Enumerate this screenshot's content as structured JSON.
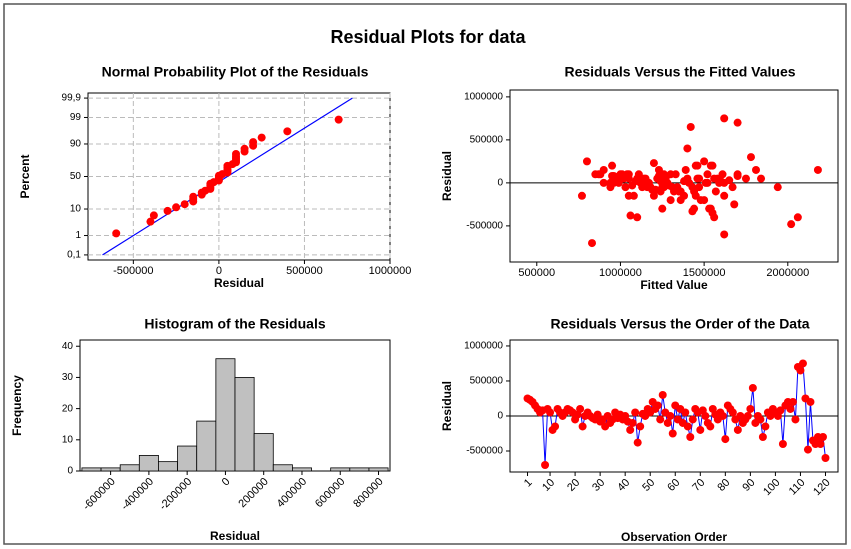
{
  "title": "Residual Plots for data",
  "chart_data": [
    {
      "type": "probability",
      "title": "Normal Probability Plot of the Residuals",
      "x_label": "Residual",
      "y_label": "Percent",
      "yscale": "probability",
      "grid": true,
      "color": "#ff0000",
      "x": [
        -600000,
        -400000,
        -380000,
        -300000,
        -250000,
        -200000,
        -150000,
        -150000,
        -150000,
        -100000,
        -100000,
        -80000,
        -50000,
        -50000,
        -50000,
        -50000,
        -30000,
        0,
        0,
        0,
        0,
        20000,
        50000,
        50000,
        50000,
        50000,
        50000,
        80000,
        100000,
        100000,
        100000,
        100000,
        100000,
        150000,
        150000,
        200000,
        200000,
        250000,
        400000,
        700000
      ],
      "y": [
        1.25,
        3.75,
        6.25,
        8.75,
        11.25,
        13.75,
        16.25,
        18.75,
        21.25,
        23.75,
        26.25,
        28.75,
        31.25,
        33.75,
        36.25,
        38.75,
        41.25,
        43.75,
        46.25,
        48.75,
        51.25,
        53.75,
        56.25,
        58.75,
        61.25,
        63.75,
        66.25,
        68.75,
        71.25,
        73.75,
        76.25,
        78.75,
        81.25,
        83.75,
        86.25,
        88.75,
        91.25,
        93.75,
        96.25,
        98.75
      ],
      "fit_line": {
        "x": [
          -680000,
          780000
        ],
        "y": [
          0.1,
          99.9
        ],
        "color": "#0000ff"
      },
      "xlim": [
        -765000,
        1000000
      ],
      "ylim": [
        0.05,
        99.95
      ],
      "xticks": [
        -500000,
        0,
        500000,
        1000000
      ],
      "yticks": [
        {
          "value": 0.1,
          "label": "0,1"
        },
        1,
        10,
        50,
        90,
        99,
        {
          "value": 99.9,
          "label": "99,9"
        }
      ]
    },
    {
      "type": "scatter",
      "title": "Residuals Versus the Fitted Values",
      "x_label": "Fitted Value",
      "y_label": "Residual",
      "color": "#ff0000",
      "reference_line": 0,
      "x": [
        1500000,
        1200000,
        1450000,
        900000,
        1050000,
        1100000,
        950000,
        830000,
        1300000,
        1000000,
        1360000,
        1080000,
        850000,
        1150000,
        1250000,
        1400000,
        1330000,
        960000,
        1020000,
        1180000,
        1240000,
        1520000,
        770000,
        1120000,
        1050000,
        990000,
        1290000,
        1160000,
        1380000,
        1210000,
        1470000,
        1050000,
        900000,
        1350000,
        1260000,
        1560000,
        1070000,
        1600000,
        1430000,
        940000,
        1190000,
        1300000,
        1240000,
        1470000,
        1060000,
        1380000,
        1650000,
        1520000,
        1110000,
        1460000,
        1550000,
        1260000,
        1390000,
        1340000,
        1780000,
        980000,
        1570000,
        1410000,
        1680000,
        1230000,
        1130000,
        1040000,
        1440000,
        1580000,
        1200000,
        1530000,
        1310000,
        880000,
        1270000,
        1500000,
        1700000,
        1170000,
        1360000,
        1450000,
        1000000,
        1090000,
        1250000,
        1750000,
        1620000,
        1430000,
        1810000,
        1610000,
        1140000,
        940000,
        1480000,
        1510000,
        1320000,
        1940000,
        1280000,
        870000,
        1400000,
        1350000,
        1590000,
        1030000,
        1540000,
        1620000,
        1840000,
        960000,
        1010000,
        1220000,
        1150000,
        1230000,
        1100000,
        2180000,
        1460000,
        1700000,
        1540000,
        1670000,
        1700000,
        1420000,
        1620000,
        800000,
        2020000,
        950000,
        1550000,
        2060000,
        1250000,
        1560000,
        1440000,
        1620000
      ],
      "y": [
        250000,
        230000,
        200000,
        150000,
        100000,
        50000,
        80000,
        -700000,
        100000,
        50000,
        -200000,
        -150000,
        100000,
        50000,
        0,
        50000,
        100000,
        80000,
        50000,
        -50000,
        20000,
        100000,
        -150000,
        0,
        50000,
        0,
        -30000,
        -50000,
        20000,
        -80000,
        -50000,
        -150000,
        0,
        -100000,
        -50000,
        50000,
        -30000,
        20000,
        -50000,
        0,
        -80000,
        -200000,
        -100000,
        50000,
        -380000,
        -150000,
        30000,
        0,
        100000,
        50000,
        200000,
        100000,
        150000,
        -50000,
        300000,
        50000,
        -100000,
        0,
        -250000,
        150000,
        -50000,
        100000,
        -100000,
        50000,
        -150000,
        -300000,
        -50000,
        100000,
        50000,
        -200000,
        80000,
        0,
        -100000,
        -150000,
        100000,
        20000,
        -50000,
        50000,
        0,
        -330000,
        150000,
        100000,
        50000,
        -50000,
        -200000,
        0,
        -100000,
        -50000,
        0,
        100000,
        400000,
        -100000,
        0,
        -50000,
        -300000,
        -150000,
        50000,
        0,
        100000,
        50000,
        0,
        80000,
        -400000,
        150000,
        200000,
        100000,
        200000,
        -50000,
        700000,
        650000,
        750000,
        250000,
        -480000,
        200000,
        -350000,
        -400000,
        -300000,
        -400000,
        -300000,
        -600000
      ],
      "xlim": [
        340000,
        2300000
      ],
      "ylim": [
        -920000,
        1080000
      ],
      "xticks": [
        500000,
        1000000,
        1500000,
        2000000
      ],
      "yticks": [
        1000000,
        500000,
        0,
        -500000
      ]
    },
    {
      "type": "histogram",
      "title": "Histogram of the Residuals",
      "x_label": "Residual",
      "y_label": "Frequency",
      "color": "#c0c0c0",
      "xtick_rotation": 45,
      "bins": [
        -750000,
        -650000,
        -550000,
        -450000,
        -350000,
        -250000,
        -150000,
        -50000,
        50000,
        150000,
        250000,
        350000,
        450000,
        550000,
        650000,
        750000,
        850000
      ],
      "values": [
        1,
        1,
        2,
        5,
        3,
        8,
        16,
        36,
        30,
        12,
        2,
        1,
        0,
        1,
        1,
        1
      ],
      "xlim": [
        -760000,
        860000
      ],
      "ylim": [
        0,
        42
      ],
      "xticks": [
        -600000,
        -400000,
        -200000,
        0,
        200000,
        400000,
        600000,
        800000
      ],
      "yticks": [
        0,
        10,
        20,
        30,
        40
      ]
    },
    {
      "type": "line",
      "title": "Residuals Versus the Order of the Data",
      "x_label": "Observation Order",
      "y_label": "Residual",
      "color": "#ff0000",
      "line_color": "#0000ff",
      "reference_line": 0,
      "xtick_rotation": 45,
      "x": [
        1,
        2,
        3,
        4,
        5,
        6,
        7,
        8,
        9,
        10,
        11,
        12,
        13,
        14,
        15,
        16,
        17,
        18,
        19,
        20,
        21,
        22,
        23,
        24,
        25,
        26,
        27,
        28,
        29,
        30,
        31,
        32,
        33,
        34,
        35,
        36,
        37,
        38,
        39,
        40,
        41,
        42,
        43,
        44,
        45,
        46,
        47,
        48,
        49,
        50,
        51,
        52,
        53,
        54,
        55,
        56,
        57,
        58,
        59,
        60,
        61,
        62,
        63,
        64,
        65,
        66,
        67,
        68,
        69,
        70,
        71,
        72,
        73,
        74,
        75,
        76,
        77,
        78,
        79,
        80,
        81,
        82,
        83,
        84,
        85,
        86,
        87,
        88,
        89,
        90,
        91,
        92,
        93,
        94,
        95,
        96,
        97,
        98,
        99,
        100,
        101,
        102,
        103,
        104,
        105,
        106,
        107,
        108,
        109,
        110,
        111,
        112,
        113,
        114,
        115,
        116,
        117,
        118,
        119,
        120
      ],
      "values": [
        250000,
        230000,
        200000,
        150000,
        100000,
        50000,
        80000,
        -700000,
        100000,
        50000,
        -200000,
        -150000,
        100000,
        50000,
        0,
        50000,
        100000,
        80000,
        50000,
        -50000,
        20000,
        100000,
        -150000,
        0,
        50000,
        0,
        -30000,
        -50000,
        20000,
        -80000,
        -50000,
        -150000,
        0,
        -100000,
        -50000,
        50000,
        -30000,
        20000,
        -50000,
        0,
        -80000,
        -200000,
        -100000,
        50000,
        -380000,
        -150000,
        30000,
        0,
        100000,
        50000,
        200000,
        100000,
        150000,
        -50000,
        300000,
        50000,
        -100000,
        0,
        -250000,
        150000,
        -50000,
        100000,
        -100000,
        50000,
        -150000,
        -300000,
        -50000,
        100000,
        50000,
        -200000,
        80000,
        0,
        -100000,
        -150000,
        100000,
        20000,
        -50000,
        50000,
        0,
        -330000,
        150000,
        100000,
        50000,
        -50000,
        -200000,
        0,
        -100000,
        -50000,
        0,
        100000,
        400000,
        -100000,
        0,
        -50000,
        -300000,
        -150000,
        50000,
        0,
        100000,
        50000,
        0,
        80000,
        -400000,
        150000,
        200000,
        100000,
        200000,
        -50000,
        700000,
        650000,
        750000,
        250000,
        -480000,
        200000,
        -350000,
        -400000,
        -300000,
        -400000,
        -300000,
        -600000
      ],
      "xlim": [
        -6,
        125
      ],
      "ylim": [
        -800000,
        1085000
      ],
      "xticks": [
        1,
        10,
        20,
        30,
        40,
        50,
        60,
        70,
        80,
        90,
        100,
        110,
        120
      ],
      "yticks": [
        1000000,
        500000,
        0,
        -500000
      ]
    }
  ]
}
